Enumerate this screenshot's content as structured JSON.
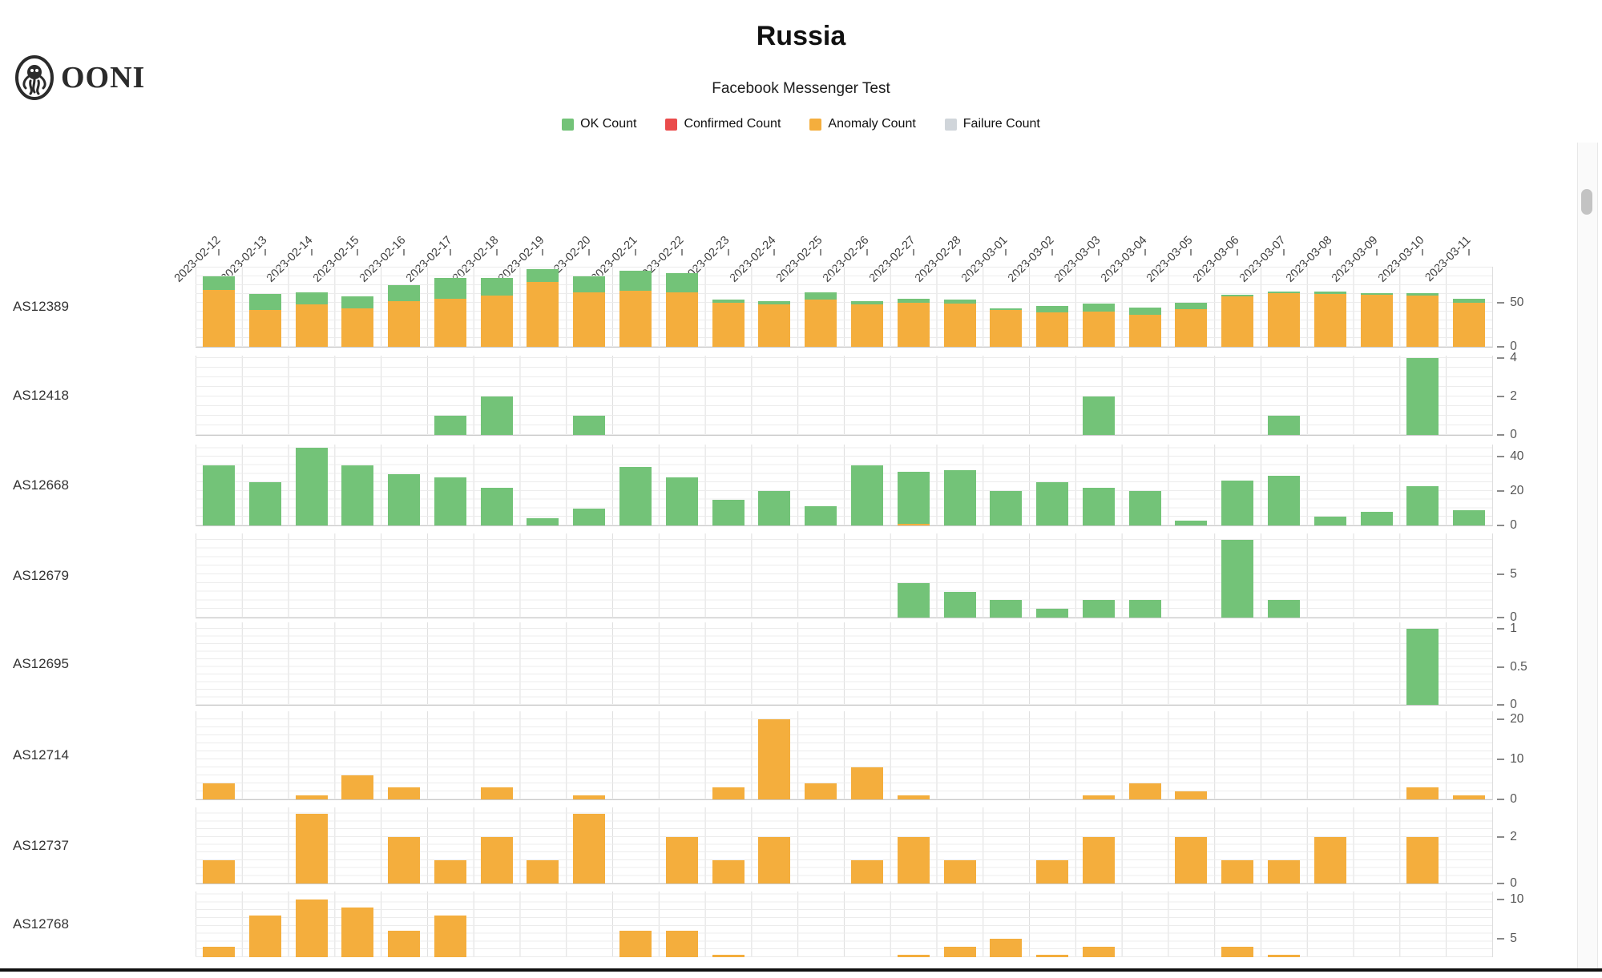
{
  "header": {
    "logo_text": "OONI",
    "title": "Russia",
    "subtitle": "Facebook Messenger Test"
  },
  "legend": [
    {
      "label": "OK Count",
      "color": "#73c378"
    },
    {
      "label": "Confirmed Count",
      "color": "#ea4b4b"
    },
    {
      "label": "Anomaly Count",
      "color": "#f4ae3d"
    },
    {
      "label": "Failure Count",
      "color": "#d0d5da"
    }
  ],
  "colors": {
    "ok": "#73c378",
    "confirmed": "#ea4b4b",
    "anomaly": "#f4ae3d",
    "failure": "#d0d5da"
  },
  "chart_data": {
    "type": "bar",
    "stacked": true,
    "grid": true,
    "note": "confirmed_count and failure_count are 0 for every ASN and date shown",
    "x": [
      "2023-02-12",
      "2023-02-13",
      "2023-02-14",
      "2023-02-15",
      "2023-02-16",
      "2023-02-17",
      "2023-02-18",
      "2023-02-19",
      "2023-02-20",
      "2023-02-21",
      "2023-02-22",
      "2023-02-23",
      "2023-02-24",
      "2023-02-25",
      "2023-02-26",
      "2023-02-27",
      "2023-02-28",
      "2023-03-01",
      "2023-03-02",
      "2023-03-03",
      "2023-03-04",
      "2023-03-05",
      "2023-03-06",
      "2023-03-07",
      "2023-03-08",
      "2023-03-09",
      "2023-03-10",
      "2023-03-11"
    ],
    "rows": [
      {
        "label": "AS12389",
        "y_ticks": [
          50,
          0
        ],
        "ylim": [
          0,
          91
        ],
        "anomaly": [
          65,
          42,
          48,
          44,
          52,
          55,
          58,
          74,
          62,
          64,
          62,
          50,
          48,
          54,
          48,
          50,
          49,
          42,
          39,
          40,
          36,
          43,
          57,
          61,
          60,
          59,
          58,
          50
        ],
        "ok": [
          15,
          18,
          14,
          13,
          18,
          23,
          20,
          14,
          18,
          22,
          22,
          4,
          4,
          8,
          4,
          5,
          5,
          2,
          7,
          9,
          9,
          7,
          2,
          2,
          3,
          2,
          3,
          5
        ]
      },
      {
        "label": "AS12418",
        "y_ticks": [
          4,
          2,
          0
        ],
        "ylim": [
          0,
          4.1
        ],
        "anomaly": [
          0,
          0,
          0,
          0,
          0,
          0,
          0,
          0,
          0,
          0,
          0,
          0,
          0,
          0,
          0,
          0,
          0,
          0,
          0,
          0,
          0,
          0,
          0,
          0,
          0,
          0,
          0,
          0
        ],
        "ok": [
          0,
          0,
          0,
          0,
          0,
          1,
          2,
          0,
          1,
          0,
          0,
          0,
          0,
          0,
          0,
          0,
          0,
          0,
          0,
          2,
          0,
          0,
          0,
          1,
          0,
          0,
          4,
          0
        ]
      },
      {
        "label": "AS12668",
        "y_ticks": [
          40,
          20,
          0
        ],
        "ylim": [
          0,
          47
        ],
        "anomaly": [
          0,
          0,
          0,
          0,
          0,
          0,
          0,
          0,
          0,
          0,
          0,
          0,
          0,
          0,
          0,
          1,
          0,
          0,
          0,
          0,
          0,
          0,
          0,
          0,
          0,
          0,
          0,
          0
        ],
        "ok": [
          35,
          25,
          45,
          35,
          30,
          28,
          22,
          4,
          10,
          34,
          28,
          15,
          20,
          11,
          35,
          30,
          32,
          20,
          25,
          22,
          20,
          3,
          26,
          29,
          5,
          8,
          23,
          9
        ]
      },
      {
        "label": "AS12679",
        "y_ticks": [
          5,
          0
        ],
        "ylim": [
          0,
          9.7
        ],
        "anomaly": [
          0,
          0,
          0,
          0,
          0,
          0,
          0,
          0,
          0,
          0,
          0,
          0,
          0,
          0,
          0,
          0,
          0,
          0,
          0,
          0,
          0,
          0,
          0,
          0,
          0,
          0,
          0,
          0
        ],
        "ok": [
          0,
          0,
          0,
          0,
          0,
          0,
          0,
          0,
          0,
          0,
          0,
          0,
          0,
          0,
          0,
          4,
          3,
          2,
          1,
          2,
          2,
          0,
          9,
          2,
          0,
          0,
          0,
          0
        ]
      },
      {
        "label": "AS12695",
        "y_ticks": [
          1,
          0.5,
          0
        ],
        "ylim": [
          0,
          1.08
        ],
        "anomaly": [
          0,
          0,
          0,
          0,
          0,
          0,
          0,
          0,
          0,
          0,
          0,
          0,
          0,
          0,
          0,
          0,
          0,
          0,
          0,
          0,
          0,
          0,
          0,
          0,
          0,
          0,
          0,
          0
        ],
        "ok": [
          0,
          0,
          0,
          0,
          0,
          0,
          0,
          0,
          0,
          0,
          0,
          0,
          0,
          0,
          0,
          0,
          0,
          0,
          0,
          0,
          0,
          0,
          0,
          0,
          0,
          0,
          1,
          0
        ]
      },
      {
        "label": "AS12714",
        "y_ticks": [
          20,
          10,
          0
        ],
        "ylim": [
          0,
          22
        ],
        "anomaly": [
          4,
          0,
          1,
          6,
          3,
          0,
          3,
          0,
          1,
          0,
          0,
          3,
          20,
          4,
          8,
          1,
          0,
          0,
          0,
          1,
          4,
          2,
          0,
          0,
          0,
          0,
          3,
          1
        ],
        "ok": [
          0,
          0,
          0,
          0,
          0,
          0,
          0,
          0,
          0,
          0,
          0,
          0,
          0,
          0,
          0,
          0,
          0,
          0,
          0,
          0,
          0,
          0,
          0,
          0,
          0,
          0,
          0,
          0
        ]
      },
      {
        "label": "AS12737",
        "y_ticks": [
          2,
          0
        ],
        "ylim": [
          0,
          3.3
        ],
        "anomaly": [
          1,
          0,
          3,
          0,
          2,
          1,
          2,
          1,
          3,
          0,
          2,
          1,
          2,
          0,
          1,
          2,
          1,
          0,
          1,
          2,
          0,
          2,
          1,
          1,
          2,
          0,
          2,
          0
        ],
        "ok": [
          0,
          0,
          0,
          0,
          0,
          0,
          0,
          0,
          0,
          0,
          0,
          0,
          0,
          0,
          0,
          0,
          0,
          0,
          0,
          0,
          0,
          0,
          0,
          0,
          0,
          0,
          0,
          0
        ]
      },
      {
        "label": "AS12768",
        "y_ticks": [
          10,
          5
        ],
        "ylim": [
          0,
          11
        ],
        "anomaly": [
          4,
          8,
          10,
          9,
          6,
          8,
          0,
          0,
          0,
          6,
          6,
          3,
          0,
          0,
          0,
          3,
          4,
          5,
          3,
          4,
          0,
          0,
          4,
          3,
          0,
          0,
          0,
          0
        ],
        "ok": [
          0,
          0,
          0,
          0,
          0,
          0,
          0,
          0,
          0,
          0,
          0,
          0,
          0,
          0,
          0,
          0,
          0,
          0,
          0,
          0,
          0,
          0,
          0,
          0,
          0,
          0,
          0,
          0
        ]
      }
    ]
  }
}
